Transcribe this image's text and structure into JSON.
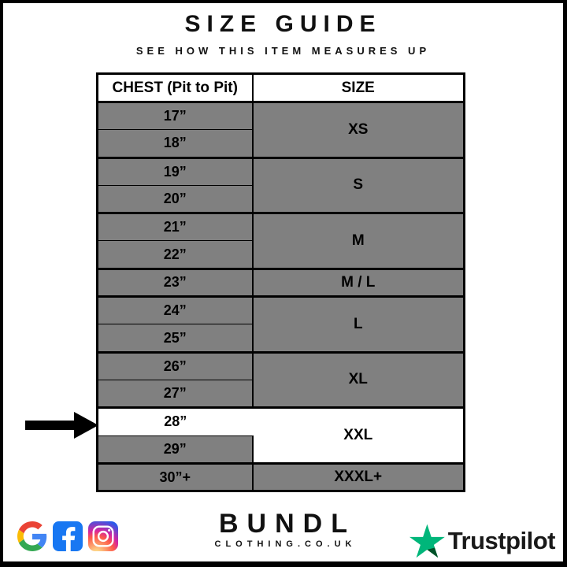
{
  "header": {
    "title": "SIZE GUIDE",
    "subtitle": "SEE HOW THIS ITEM MEASURES UP"
  },
  "table": {
    "columns": [
      "CHEST (Pit to Pit)",
      "SIZE"
    ],
    "groups": [
      {
        "size": "XS",
        "chest": [
          "17”",
          "18”"
        ],
        "highlight": false
      },
      {
        "size": "S",
        "chest": [
          "19”",
          "20”"
        ],
        "highlight": false
      },
      {
        "size": "M",
        "chest": [
          "21”",
          "22”"
        ],
        "highlight": false
      },
      {
        "size": "M / L",
        "chest": [
          "23”"
        ],
        "highlight": false
      },
      {
        "size": "L",
        "chest": [
          "24”",
          "25”"
        ],
        "highlight": false
      },
      {
        "size": "XL",
        "chest": [
          "26”",
          "27”"
        ],
        "highlight": false
      },
      {
        "size": "XXL",
        "chest": [
          "28”",
          "29”"
        ],
        "highlight": true,
        "highlight_chest": "28”"
      },
      {
        "size": "XXXL+",
        "chest": [
          "30”+"
        ],
        "highlight": false
      }
    ],
    "colors": {
      "row_gray": "#808080",
      "highlight_white": "#ffffff",
      "border_black": "#000000"
    }
  },
  "annotation": {
    "arrow_points_to": "28”"
  },
  "footer": {
    "brand": {
      "name": "BUNDL",
      "domain": "CLOTHING.CO.UK"
    },
    "social_icons": [
      "google-icon",
      "facebook-icon",
      "instagram-icon"
    ],
    "trustpilot": {
      "label": "Trustpilot",
      "star_color": "#00B67A",
      "star_shade_color": "#005128"
    },
    "icon_colors": {
      "facebook_blue": "#1877F2",
      "google_blue": "#4285F4",
      "google_red": "#EA4335",
      "google_yellow": "#FBBC05",
      "google_green": "#34A853"
    }
  }
}
